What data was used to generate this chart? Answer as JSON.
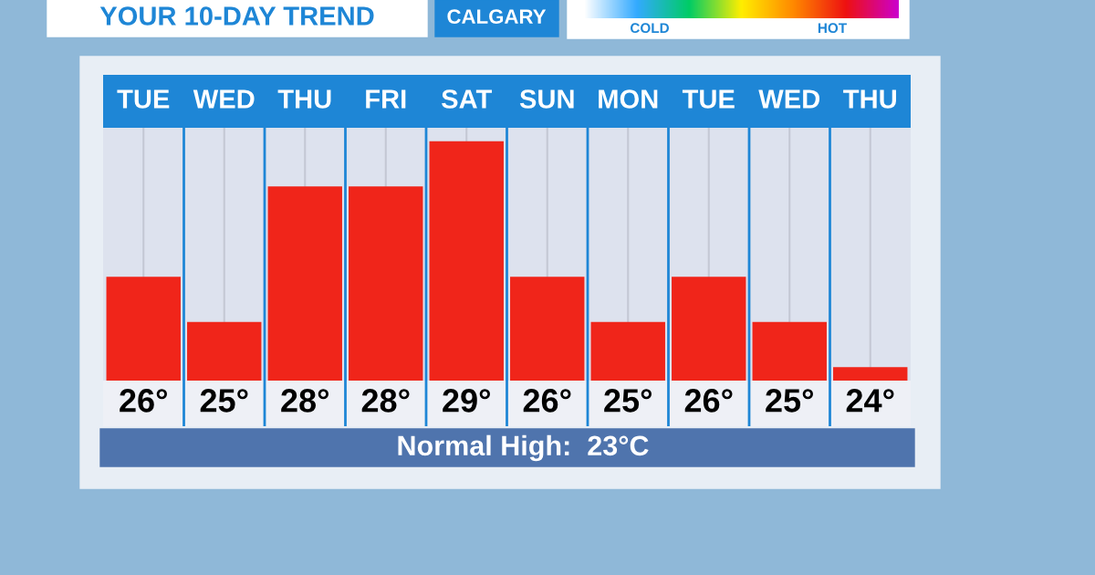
{
  "chart_data": {
    "type": "bar",
    "title": "YOUR 10-DAY TREND",
    "subtitle": "CALGARY",
    "categories": [
      "TUE",
      "WED",
      "THU",
      "FRI",
      "SAT",
      "SUN",
      "MON",
      "TUE",
      "WED",
      "THU"
    ],
    "values": [
      26,
      25,
      28,
      28,
      29,
      26,
      25,
      26,
      25,
      24
    ],
    "value_labels": [
      "26°",
      "25°",
      "28°",
      "28°",
      "29°",
      "26°",
      "25°",
      "26°",
      "25°",
      "24°"
    ],
    "color": "#f0251a",
    "grid": "x",
    "ylim": [
      23.7,
      29.3
    ],
    "annotations": [
      "COLD",
      "HOT",
      "Normal High:  23°C"
    ]
  }
}
